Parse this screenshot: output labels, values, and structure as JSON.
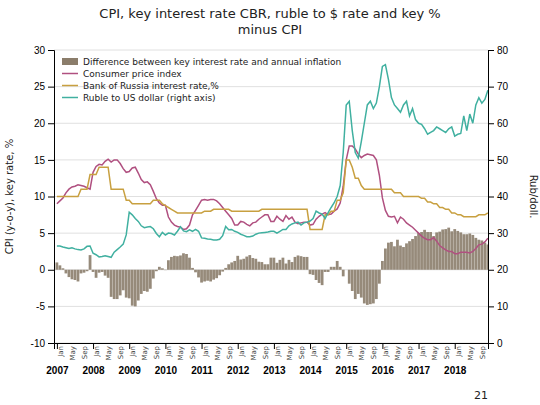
{
  "chart_data": {
    "type": "line",
    "title": "CPI, key interest rate CBR, ruble to $ rate and key %\nminus CPI",
    "ylabel": "CPI (y-o-y), key rate, %",
    "y2label": "Rub/doll.",
    "xlim": [
      2006.92,
      2018.92
    ],
    "xticks": [
      2007,
      2008,
      2009,
      2010,
      2011,
      2012,
      2013,
      2014,
      2015,
      2016,
      2017,
      2018
    ],
    "ylim": [
      -10,
      30
    ],
    "yticks": [
      -10,
      -5,
      0,
      5,
      10,
      15,
      20,
      25,
      30
    ],
    "y2lim": [
      0,
      80
    ],
    "y2ticks": [
      0,
      10,
      20,
      30,
      40,
      50,
      60,
      70,
      80
    ],
    "grid": true,
    "legend": "top-left",
    "x": [
      2007,
      2007.0833333333333,
      2007.1666666666667,
      2007.25,
      2007.3333333333333,
      2007.4166666666667,
      2007.5,
      2007.5833333333333,
      2007.6666666666667,
      2007.75,
      2007.8333333333333,
      2007.9166666666667,
      2008,
      2008.0833333333333,
      2008.1666666666667,
      2008.25,
      2008.3333333333333,
      2008.4166666666667,
      2008.5,
      2008.5833333333333,
      2008.6666666666667,
      2008.75,
      2008.8333333333333,
      2008.9166666666667,
      2009,
      2009.0833333333333,
      2009.1666666666667,
      2009.25,
      2009.3333333333333,
      2009.4166666666667,
      2009.5,
      2009.5833333333333,
      2009.6666666666667,
      2009.75,
      2009.8333333333333,
      2009.9166666666667,
      2010,
      2010.0833333333333,
      2010.1666666666667,
      2010.25,
      2010.3333333333333,
      2010.4166666666667,
      2010.5,
      2010.5833333333333,
      2010.6666666666667,
      2010.75,
      2010.8333333333333,
      2010.9166666666667,
      2011,
      2011.0833333333333,
      2011.1666666666667,
      2011.25,
      2011.3333333333333,
      2011.4166666666667,
      2011.5,
      2011.5833333333333,
      2011.6666666666667,
      2011.75,
      2011.8333333333333,
      2011.9166666666667,
      2012,
      2012.0833333333333,
      2012.1666666666667,
      2012.25,
      2012.3333333333333,
      2012.4166666666667,
      2012.5,
      2012.5833333333333,
      2012.6666666666667,
      2012.75,
      2012.8333333333333,
      2012.9166666666667,
      2013,
      2013.0833333333333,
      2013.1666666666667,
      2013.25,
      2013.3333333333333,
      2013.4166666666667,
      2013.5,
      2013.5833333333333,
      2013.6666666666667,
      2013.75,
      2013.8333333333333,
      2013.9166666666667,
      2014,
      2014.0833333333333,
      2014.1666666666667,
      2014.25,
      2014.3333333333333,
      2014.4166666666667,
      2014.5,
      2014.5833333333333,
      2014.6666666666667,
      2014.75,
      2014.8333333333333,
      2014.9166666666667,
      2015,
      2015.0833333333333,
      2015.1666666666667,
      2015.25,
      2015.3333333333333,
      2015.4166666666667,
      2015.5,
      2015.5833333333333,
      2015.6666666666667,
      2015.75,
      2015.8333333333333,
      2015.9166666666667,
      2016,
      2016.0833333333333,
      2016.1666666666667,
      2016.25,
      2016.3333333333333,
      2016.4166666666667,
      2016.5,
      2016.5833333333333,
      2016.6666666666667,
      2016.75,
      2016.8333333333333,
      2016.9166666666667,
      2017,
      2017.0833333333333,
      2017.1666666666667,
      2017.25,
      2017.3333333333333,
      2017.4166666666667,
      2017.5,
      2017.5833333333333,
      2017.6666666666667,
      2017.75,
      2017.8333333333333,
      2017.9166666666667,
      2018,
      2018.0833333333333,
      2018.1666666666667,
      2018.25,
      2018.3333333333333,
      2018.4166666666667,
      2018.5,
      2018.5833333333333,
      2018.6666666666667,
      2018.75,
      2018.8333333333333,
      2018.9166666666667
    ],
    "series": [
      {
        "name": "Difference between key interest rate and annual inflation",
        "type": "bar",
        "color": "#8B7D6B",
        "values": [
          1.0,
          0.6,
          0.2,
          -0.5,
          -1.0,
          -1.3,
          -1.4,
          -1.6,
          -0.5,
          -0.4,
          -0.2,
          2.0,
          -0.3,
          -1.1,
          -0.4,
          -0.3,
          -0.8,
          -1.1,
          -3.7,
          -4.0,
          -4.0,
          -3.5,
          -2.8,
          -3.8,
          -3.9,
          -4.9,
          -5.0,
          -4.2,
          -3.3,
          -2.9,
          -3.0,
          -2.6,
          -1.2,
          -0.2,
          0.4,
          0.2,
          -0.05,
          1.3,
          1.75,
          1.9,
          1.85,
          1.95,
          2.25,
          2.15,
          1.65,
          0.25,
          -0.35,
          -1.05,
          -1.75,
          -1.6,
          -1.5,
          -1.6,
          -1.35,
          -1.15,
          -0.75,
          -0.25,
          0.25,
          0.75,
          1.0,
          1.2,
          1.9,
          1.4,
          1.5,
          1.8,
          2.0,
          1.6,
          1.5,
          1.1,
          1.05,
          0.75,
          0.75,
          1.65,
          1.65,
          0.95,
          1.35,
          1.65,
          0.85,
          1.35,
          1.05,
          1.75,
          1.95,
          1.85,
          1.75,
          1.75,
          -0.6,
          -0.7,
          -1.4,
          -1.8,
          -2.1,
          -0.3,
          -0.3,
          0.4,
          0.4,
          1.2,
          0.4,
          -0.9,
          0.0,
          -1.9,
          -2.9,
          -4.0,
          -3.3,
          -3.8,
          -4.6,
          -4.8,
          -4.7,
          -4.6,
          -4.0,
          -1.9,
          1.2,
          2.9,
          3.7,
          3.8,
          3.2,
          4.1,
          3.3,
          3.1,
          3.6,
          3.9,
          4.2,
          4.6,
          5.0,
          5.15,
          5.45,
          5.15,
          5.15,
          4.6,
          5.1,
          5.2,
          5.5,
          5.55,
          5.75,
          5.25,
          5.55,
          5.3,
          5.1,
          4.85,
          4.85,
          4.95,
          4.75,
          4.35,
          4.1,
          4.0,
          3.7,
          3.45
        ]
      },
      {
        "name": "Consumer price index",
        "type": "line",
        "color": "#B05080",
        "values": [
          9.0,
          9.4,
          9.8,
          10.5,
          11.0,
          11.3,
          11.4,
          11.6,
          11.5,
          11.4,
          11.2,
          11.0,
          13.3,
          14.1,
          14.4,
          14.3,
          14.8,
          15.1,
          14.7,
          15.0,
          15.0,
          14.5,
          13.8,
          13.3,
          13.4,
          13.9,
          14.0,
          13.2,
          12.3,
          11.9,
          12.0,
          11.6,
          10.7,
          9.7,
          9.1,
          8.8,
          8.8,
          7.2,
          6.5,
          6.1,
          5.9,
          5.8,
          5.5,
          5.6,
          6.1,
          7.5,
          8.1,
          8.8,
          9.5,
          9.6,
          9.5,
          9.6,
          9.6,
          9.4,
          9.0,
          8.5,
          8.0,
          7.5,
          7.0,
          6.1,
          6.1,
          6.6,
          6.5,
          6.2,
          6.0,
          6.4,
          6.5,
          6.9,
          7.2,
          7.5,
          7.5,
          6.6,
          6.6,
          7.3,
          6.9,
          6.6,
          7.4,
          6.9,
          7.2,
          6.5,
          6.3,
          6.4,
          6.5,
          6.5,
          6.1,
          6.2,
          6.9,
          7.3,
          7.6,
          7.8,
          7.5,
          7.6,
          8.0,
          8.3,
          9.1,
          11.4,
          15.0,
          16.9,
          16.9,
          16.5,
          15.8,
          15.3,
          15.6,
          15.8,
          15.7,
          15.6,
          15.0,
          12.9,
          9.8,
          8.1,
          7.3,
          7.2,
          7.3,
          6.4,
          7.2,
          6.9,
          6.4,
          6.1,
          5.8,
          5.4,
          5.0,
          4.6,
          4.3,
          4.1,
          4.1,
          4.4,
          3.9,
          3.3,
          3.0,
          2.7,
          2.5,
          2.5,
          2.2,
          2.2,
          2.4,
          2.4,
          2.4,
          2.3,
          2.5,
          2.9,
          3.4,
          3.5,
          3.8,
          4.3
        ]
      },
      {
        "name": "Bank of Russia interest rate,%",
        "type": "line",
        "color": "#C8A040",
        "values": [
          10.0,
          10.0,
          10.0,
          10.0,
          10.0,
          10.0,
          10.0,
          10.0,
          11.0,
          11.0,
          11.0,
          13.0,
          13.0,
          13.0,
          14.0,
          14.0,
          14.0,
          14.0,
          11.0,
          11.0,
          11.0,
          11.0,
          11.0,
          9.5,
          9.5,
          9.0,
          9.0,
          9.0,
          9.0,
          9.0,
          9.0,
          9.0,
          9.5,
          9.5,
          9.5,
          9.0,
          8.75,
          8.5,
          8.25,
          8.0,
          7.75,
          7.75,
          7.75,
          7.75,
          7.75,
          7.75,
          7.75,
          7.75,
          7.75,
          8.0,
          8.0,
          8.0,
          8.25,
          8.25,
          8.25,
          8.25,
          8.25,
          8.25,
          8.0,
          8.0,
          8.0,
          8.0,
          8.0,
          8.0,
          8.0,
          8.0,
          8.0,
          8.0,
          8.25,
          8.25,
          8.25,
          8.25,
          8.25,
          8.25,
          8.25,
          8.25,
          8.25,
          8.25,
          8.25,
          8.25,
          8.25,
          8.25,
          8.25,
          8.25,
          5.5,
          5.5,
          5.5,
          5.5,
          5.5,
          7.5,
          7.5,
          8.0,
          8.0,
          9.5,
          9.5,
          10.5,
          15.0,
          15.0,
          14.0,
          12.5,
          12.5,
          11.5,
          11.0,
          11.0,
          11.0,
          11.0,
          11.0,
          11.0,
          11.0,
          11.0,
          11.0,
          11.0,
          10.5,
          10.5,
          10.5,
          10.0,
          10.0,
          10.0,
          10.0,
          10.0,
          10.0,
          9.75,
          9.75,
          9.25,
          9.25,
          9.0,
          9.0,
          8.5,
          8.5,
          8.25,
          8.25,
          7.75,
          7.75,
          7.5,
          7.5,
          7.25,
          7.25,
          7.25,
          7.25,
          7.25,
          7.5,
          7.5,
          7.5,
          7.75
        ]
      },
      {
        "name": "Ruble to US dollar (right axis)",
        "type": "line",
        "color": "#40B0A0",
        "axis": "y2",
        "values": [
          26.5,
          26.5,
          26.2,
          26.0,
          25.8,
          26.0,
          25.7,
          25.5,
          25.4,
          25.7,
          26.4,
          26.5,
          24.5,
          24.1,
          23.5,
          23.6,
          23.8,
          23.6,
          23.4,
          24.8,
          25.5,
          26.2,
          27.0,
          29.5,
          35.7,
          35.0,
          34.0,
          33.2,
          32.0,
          31.5,
          31.7,
          31.8,
          31.2,
          29.9,
          29.0,
          30.2,
          29.5,
          30.0,
          29.9,
          29.5,
          30.5,
          31.7,
          30.6,
          30.4,
          30.9,
          30.5,
          31.0,
          30.5,
          28.7,
          28.6,
          28.4,
          28.3,
          28.1,
          28.1,
          28.3,
          29.3,
          31.8,
          30.9,
          31.0,
          30.5,
          30.2,
          29.7,
          29.4,
          29.0,
          29.0,
          29.2,
          29.7,
          30.0,
          30.1,
          30.2,
          30.3,
          30.5,
          30.5,
          30.0,
          30.5,
          31.0,
          31.0,
          32.0,
          32.5,
          32.8,
          33.0,
          32.2,
          32.8,
          33.0,
          33.3,
          34.0,
          36.0,
          35.5,
          35.2,
          34.0,
          35.6,
          37.0,
          38.3,
          40.0,
          43.0,
          52.0,
          65.0,
          66.0,
          58.0,
          52.0,
          50.5,
          55.0,
          60.0,
          65.0,
          66.0,
          64.0,
          65.5,
          70.0,
          75.5,
          76.0,
          72.0,
          67.0,
          65.0,
          64.0,
          63.0,
          65.0,
          66.0,
          62.0,
          64.0,
          61.0,
          60.0,
          59.7,
          58.5,
          57.0,
          57.5,
          58.0,
          59.0,
          58.5,
          58.0,
          57.5,
          58.5,
          59.0,
          56.5,
          57.0,
          57.2,
          62.0,
          58.0,
          62.5,
          60.0,
          65.0,
          67.0,
          65.5,
          66.5,
          69.0
        ]
      }
    ],
    "annotations": [
      {
        "text": "Jan",
        "x": 2007
      },
      {
        "text": "May",
        "x": 2007.3333333333333
      },
      {
        "text": "Sep",
        "x": 2007.6666666666667
      },
      {
        "text": "Jan",
        "x": 2008
      },
      {
        "text": "May",
        "x": 2008.3333333333333
      },
      {
        "text": "Sep",
        "x": 2008.6666666666667
      },
      {
        "text": "Jan",
        "x": 2009
      },
      {
        "text": "May",
        "x": 2009.3333333333333
      },
      {
        "text": "Sep",
        "x": 2009.6666666666667
      },
      {
        "text": "Jan",
        "x": 2010
      },
      {
        "text": "May",
        "x": 2010.3333333333333
      },
      {
        "text": "Sep",
        "x": 2010.6666666666667
      },
      {
        "text": "Jan",
        "x": 2011
      },
      {
        "text": "May",
        "x": 2011.3333333333333
      },
      {
        "text": "Sep",
        "x": 2011.6666666666667
      },
      {
        "text": "Jan",
        "x": 2012
      },
      {
        "text": "May",
        "x": 2012.3333333333333
      },
      {
        "text": "Sep",
        "x": 2012.6666666666667
      },
      {
        "text": "Jan",
        "x": 2013
      },
      {
        "text": "May",
        "x": 2013.3333333333333
      },
      {
        "text": "Sep",
        "x": 2013.6666666666667
      },
      {
        "text": "Jan",
        "x": 2014
      },
      {
        "text": "May",
        "x": 2014.3333333333333
      },
      {
        "text": "Sep",
        "x": 2014.6666666666667
      },
      {
        "text": "Jan",
        "x": 2015
      },
      {
        "text": "May",
        "x": 2015.3333333333333
      },
      {
        "text": "Sep",
        "x": 2015.6666666666667
      },
      {
        "text": "Jan",
        "x": 2016
      },
      {
        "text": "May",
        "x": 2016.3333333333333
      },
      {
        "text": "Sep",
        "x": 2016.6666666666667
      },
      {
        "text": "Jan",
        "x": 2017
      },
      {
        "text": "May",
        "x": 2017.3333333333333
      },
      {
        "text": "Sep",
        "x": 2017.6666666666667
      },
      {
        "text": "Jan",
        "x": 2018
      },
      {
        "text": "May",
        "x": 2018.3333333333333
      },
      {
        "text": "Sep",
        "x": 2018.6666666666667
      },
      {
        "text": "21"
      }
    ]
  }
}
